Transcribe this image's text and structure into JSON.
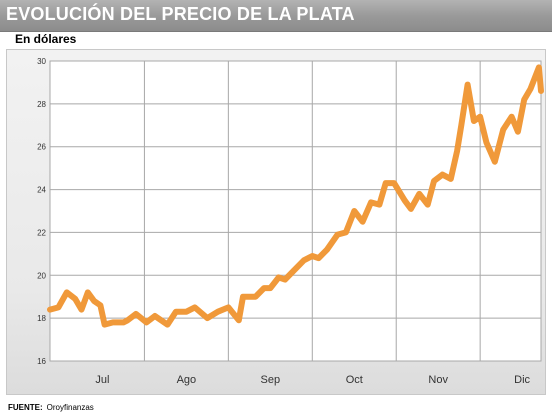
{
  "header": {
    "title": "EVOLUCIÓN DEL PRECIO DE LA PLATA",
    "subtitle": "En dólares"
  },
  "footer": {
    "source_label": "FUENTE:",
    "source_value": "Oroyfinanzas"
  },
  "colors": {
    "line": "#f0993a",
    "grid": "#a8a8a8",
    "title_bar": "#9a9a9a"
  },
  "chart_data": {
    "type": "line",
    "title": "EVOLUCIÓN DEL PRECIO DE LA PLATA",
    "subtitle": "En dólares",
    "xlabel": "",
    "ylabel": "",
    "ylim": [
      16,
      30
    ],
    "yticks": [
      16,
      18,
      20,
      22,
      24,
      26,
      28,
      30
    ],
    "xlim": [
      0,
      23.4
    ],
    "x_categories": [
      "Jul",
      "Ago",
      "Sep",
      "Oct",
      "Nov",
      "Dic"
    ],
    "x_category_positions": [
      2.5,
      6.5,
      10.5,
      14.5,
      18.5,
      22.5
    ],
    "grid": true,
    "legend": "none",
    "series": [
      {
        "name": "",
        "x": [
          0,
          0.4,
          0.8,
          1.2,
          1.5,
          1.8,
          2.1,
          2.4,
          2.6,
          3.0,
          3.5,
          3.7,
          4.1,
          4.6,
          5.0,
          5.6,
          6.0,
          6.5,
          6.9,
          7.5,
          8.0,
          8.5,
          9.0,
          9.2,
          9.8,
          10.2,
          10.5,
          10.9,
          11.2,
          11.6,
          12.1,
          12.5,
          12.8,
          13.2,
          13.7,
          14.1,
          14.5,
          14.9,
          15.3,
          15.7,
          16.0,
          16.4,
          16.9,
          17.2,
          17.6,
          18.0,
          18.3,
          18.7,
          19.1,
          19.4,
          19.6,
          19.9,
          20.2,
          20.5,
          20.8,
          21.2,
          21.6,
          22.0,
          22.3,
          22.6,
          22.9,
          23.3,
          23.4
        ],
        "y": [
          18.4,
          18.5,
          19.2,
          18.9,
          18.4,
          19.2,
          18.8,
          18.6,
          17.7,
          17.8,
          17.8,
          17.9,
          18.2,
          17.8,
          18.1,
          17.7,
          18.3,
          18.3,
          18.5,
          18.0,
          18.3,
          18.5,
          17.9,
          19.0,
          19.0,
          19.4,
          19.4,
          19.9,
          19.8,
          20.2,
          20.7,
          20.9,
          20.8,
          21.2,
          21.9,
          22.0,
          23.0,
          22.5,
          23.4,
          23.3,
          24.3,
          24.3,
          23.5,
          23.1,
          23.8,
          23.3,
          24.4,
          24.7,
          24.5,
          25.8,
          27.0,
          28.9,
          27.2,
          27.4,
          26.2,
          25.3,
          26.8,
          27.4,
          26.7,
          28.2,
          28.7,
          29.7,
          28.6
        ]
      }
    ]
  }
}
